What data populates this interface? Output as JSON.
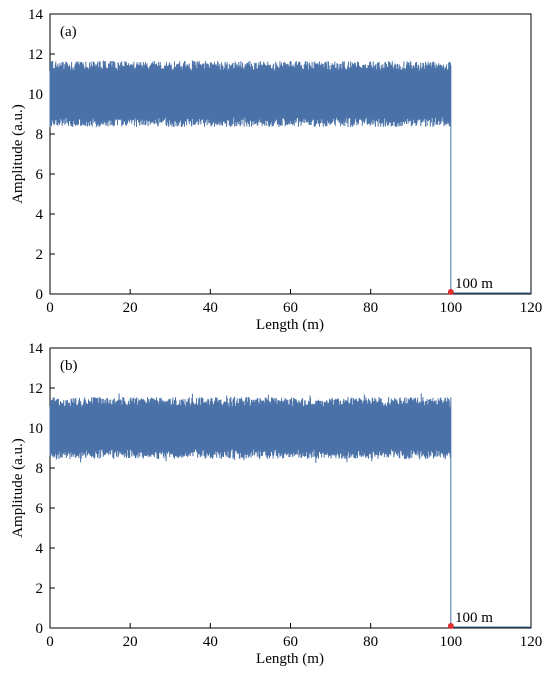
{
  "chart_data": [
    {
      "type": "line",
      "panel_label": "(a)",
      "xlabel": "Length (m)",
      "ylabel": "Amplitude (a.u.)",
      "xlim": [
        0,
        120
      ],
      "ylim": [
        0,
        14
      ],
      "xticks": [
        "0",
        "20",
        "40",
        "60",
        "80",
        "100",
        "120"
      ],
      "yticks": [
        "0",
        "2",
        "4",
        "6",
        "8",
        "10",
        "12",
        "14"
      ],
      "grid": false,
      "series": [
        {
          "color": "#4a72a8",
          "description": "dense noisy trace",
          "x_range": [
            0,
            100
          ],
          "band_low": 8.6,
          "band_high": 11.4,
          "mean": 10.0,
          "peak_max": 11.7,
          "peak_min": 8.4,
          "after_end_value": 0.05
        }
      ],
      "marker": {
        "x": 100,
        "y": 0.1,
        "label": "100 m",
        "color": "#e03030"
      }
    },
    {
      "type": "line",
      "panel_label": "(b)",
      "xlabel": "Length (m)",
      "ylabel": "Amplitude (a.u.)",
      "xlim": [
        0,
        120
      ],
      "ylim": [
        0,
        14
      ],
      "xticks": [
        "0",
        "20",
        "40",
        "60",
        "80",
        "100",
        "120"
      ],
      "yticks": [
        "0",
        "2",
        "4",
        "6",
        "8",
        "10",
        "12",
        "14"
      ],
      "grid": false,
      "series": [
        {
          "color": "#4a72a8",
          "description": "dense noisy trace",
          "x_range": [
            0,
            100
          ],
          "band_low": 8.7,
          "band_high": 11.3,
          "mean": 10.0,
          "peak_max": 11.8,
          "peak_min": 8.2,
          "after_end_value": 0.05
        }
      ],
      "marker": {
        "x": 100,
        "y": 0.1,
        "label": "100 m",
        "color": "#e03030"
      }
    }
  ]
}
